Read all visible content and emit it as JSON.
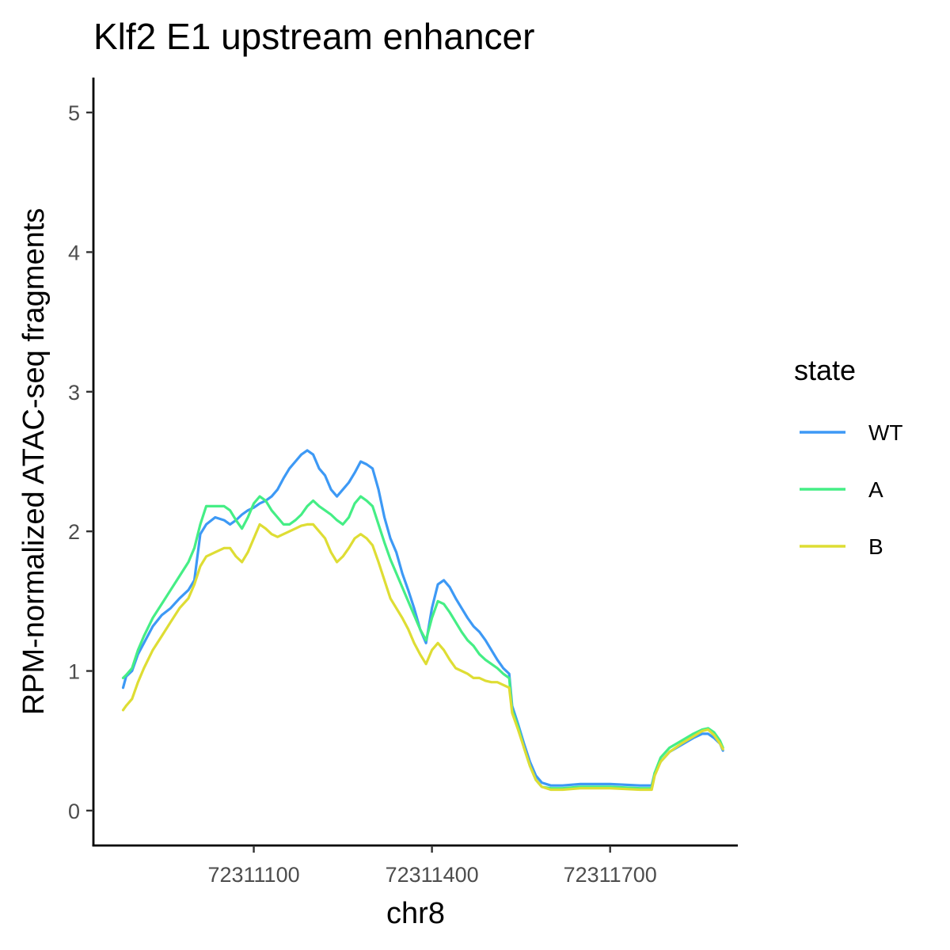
{
  "chart_data": {
    "type": "line",
    "title": "Klf2 E1 upstream enhancer",
    "xlabel": "chr8",
    "ylabel": "RPM-normalized ATAC-seq fragments",
    "xlim": [
      72310830,
      72311915
    ],
    "ylim": [
      -0.25,
      5.25
    ],
    "x_ticks": [
      72311100,
      72311400,
      72311700
    ],
    "x_tick_labels": [
      "72311100",
      "72311400",
      "72311700"
    ],
    "y_ticks": [
      0,
      1,
      2,
      3,
      4,
      5
    ],
    "y_tick_labels": [
      "0",
      "1",
      "2",
      "3",
      "4",
      "5"
    ],
    "grid": false,
    "legend": {
      "title": "state",
      "position": "right"
    },
    "series": [
      {
        "name": "WT",
        "color": "#3d99f5",
        "points": [
          [
            72310880,
            0.88
          ],
          [
            72310885,
            0.96
          ],
          [
            72310895,
            1.0
          ],
          [
            72310905,
            1.12
          ],
          [
            72310915,
            1.2
          ],
          [
            72310930,
            1.32
          ],
          [
            72310945,
            1.4
          ],
          [
            72310960,
            1.45
          ],
          [
            72310975,
            1.52
          ],
          [
            72310990,
            1.58
          ],
          [
            72311000,
            1.65
          ],
          [
            72311010,
            1.98
          ],
          [
            72311020,
            2.05
          ],
          [
            72311035,
            2.1
          ],
          [
            72311050,
            2.08
          ],
          [
            72311060,
            2.05
          ],
          [
            72311070,
            2.08
          ],
          [
            72311080,
            2.12
          ],
          [
            72311090,
            2.15
          ],
          [
            72311100,
            2.17
          ],
          [
            72311110,
            2.2
          ],
          [
            72311120,
            2.22
          ],
          [
            72311130,
            2.25
          ],
          [
            72311140,
            2.3
          ],
          [
            72311150,
            2.38
          ],
          [
            72311160,
            2.45
          ],
          [
            72311170,
            2.5
          ],
          [
            72311180,
            2.55
          ],
          [
            72311190,
            2.58
          ],
          [
            72311200,
            2.55
          ],
          [
            72311210,
            2.45
          ],
          [
            72311220,
            2.4
          ],
          [
            72311230,
            2.3
          ],
          [
            72311240,
            2.25
          ],
          [
            72311250,
            2.3
          ],
          [
            72311260,
            2.35
          ],
          [
            72311270,
            2.42
          ],
          [
            72311280,
            2.5
          ],
          [
            72311290,
            2.48
          ],
          [
            72311300,
            2.45
          ],
          [
            72311310,
            2.3
          ],
          [
            72311320,
            2.1
          ],
          [
            72311330,
            1.95
          ],
          [
            72311340,
            1.85
          ],
          [
            72311350,
            1.7
          ],
          [
            72311360,
            1.58
          ],
          [
            72311370,
            1.45
          ],
          [
            72311380,
            1.3
          ],
          [
            72311390,
            1.2
          ],
          [
            72311400,
            1.45
          ],
          [
            72311410,
            1.62
          ],
          [
            72311420,
            1.65
          ],
          [
            72311430,
            1.6
          ],
          [
            72311440,
            1.52
          ],
          [
            72311450,
            1.45
          ],
          [
            72311460,
            1.38
          ],
          [
            72311470,
            1.32
          ],
          [
            72311480,
            1.28
          ],
          [
            72311490,
            1.22
          ],
          [
            72311500,
            1.15
          ],
          [
            72311510,
            1.08
          ],
          [
            72311520,
            1.02
          ],
          [
            72311530,
            0.98
          ],
          [
            72311535,
            0.75
          ],
          [
            72311545,
            0.62
          ],
          [
            72311555,
            0.48
          ],
          [
            72311565,
            0.35
          ],
          [
            72311575,
            0.25
          ],
          [
            72311585,
            0.2
          ],
          [
            72311600,
            0.18
          ],
          [
            72311620,
            0.18
          ],
          [
            72311650,
            0.19
          ],
          [
            72311700,
            0.19
          ],
          [
            72311750,
            0.18
          ],
          [
            72311770,
            0.18
          ],
          [
            72311775,
            0.27
          ],
          [
            72311785,
            0.35
          ],
          [
            72311800,
            0.42
          ],
          [
            72311820,
            0.47
          ],
          [
            72311840,
            0.52
          ],
          [
            72311855,
            0.55
          ],
          [
            72311865,
            0.55
          ],
          [
            72311875,
            0.52
          ],
          [
            72311885,
            0.48
          ],
          [
            72311890,
            0.43
          ]
        ]
      },
      {
        "name": "A",
        "color": "#45ee85",
        "points": [
          [
            72310880,
            0.95
          ],
          [
            72310885,
            0.97
          ],
          [
            72310895,
            1.02
          ],
          [
            72310905,
            1.15
          ],
          [
            72310915,
            1.25
          ],
          [
            72310930,
            1.38
          ],
          [
            72310945,
            1.48
          ],
          [
            72310960,
            1.58
          ],
          [
            72310975,
            1.68
          ],
          [
            72310990,
            1.78
          ],
          [
            72311000,
            1.88
          ],
          [
            72311010,
            2.05
          ],
          [
            72311020,
            2.18
          ],
          [
            72311035,
            2.18
          ],
          [
            72311050,
            2.18
          ],
          [
            72311060,
            2.15
          ],
          [
            72311070,
            2.08
          ],
          [
            72311080,
            2.02
          ],
          [
            72311090,
            2.1
          ],
          [
            72311100,
            2.2
          ],
          [
            72311110,
            2.25
          ],
          [
            72311120,
            2.22
          ],
          [
            72311130,
            2.15
          ],
          [
            72311140,
            2.1
          ],
          [
            72311150,
            2.05
          ],
          [
            72311160,
            2.05
          ],
          [
            72311170,
            2.08
          ],
          [
            72311180,
            2.12
          ],
          [
            72311190,
            2.18
          ],
          [
            72311200,
            2.22
          ],
          [
            72311210,
            2.18
          ],
          [
            72311220,
            2.15
          ],
          [
            72311230,
            2.12
          ],
          [
            72311240,
            2.08
          ],
          [
            72311250,
            2.05
          ],
          [
            72311260,
            2.1
          ],
          [
            72311270,
            2.2
          ],
          [
            72311280,
            2.25
          ],
          [
            72311290,
            2.22
          ],
          [
            72311300,
            2.18
          ],
          [
            72311310,
            2.05
          ],
          [
            72311320,
            1.92
          ],
          [
            72311330,
            1.8
          ],
          [
            72311340,
            1.7
          ],
          [
            72311350,
            1.6
          ],
          [
            72311360,
            1.5
          ],
          [
            72311370,
            1.4
          ],
          [
            72311380,
            1.3
          ],
          [
            72311390,
            1.22
          ],
          [
            72311400,
            1.38
          ],
          [
            72311410,
            1.5
          ],
          [
            72311420,
            1.48
          ],
          [
            72311430,
            1.42
          ],
          [
            72311440,
            1.35
          ],
          [
            72311450,
            1.28
          ],
          [
            72311460,
            1.22
          ],
          [
            72311470,
            1.18
          ],
          [
            72311480,
            1.12
          ],
          [
            72311490,
            1.08
          ],
          [
            72311500,
            1.05
          ],
          [
            72311510,
            1.02
          ],
          [
            72311520,
            0.98
          ],
          [
            72311530,
            0.95
          ],
          [
            72311535,
            0.72
          ],
          [
            72311545,
            0.6
          ],
          [
            72311555,
            0.45
          ],
          [
            72311565,
            0.32
          ],
          [
            72311575,
            0.22
          ],
          [
            72311585,
            0.17
          ],
          [
            72311600,
            0.16
          ],
          [
            72311620,
            0.16
          ],
          [
            72311650,
            0.17
          ],
          [
            72311700,
            0.17
          ],
          [
            72311750,
            0.16
          ],
          [
            72311770,
            0.16
          ],
          [
            72311775,
            0.27
          ],
          [
            72311785,
            0.38
          ],
          [
            72311800,
            0.45
          ],
          [
            72311820,
            0.5
          ],
          [
            72311840,
            0.55
          ],
          [
            72311855,
            0.58
          ],
          [
            72311865,
            0.59
          ],
          [
            72311875,
            0.56
          ],
          [
            72311885,
            0.5
          ],
          [
            72311890,
            0.45
          ]
        ]
      },
      {
        "name": "B",
        "color": "#dedd34",
        "points": [
          [
            72310880,
            0.72
          ],
          [
            72310885,
            0.75
          ],
          [
            72310895,
            0.8
          ],
          [
            72310905,
            0.92
          ],
          [
            72310915,
            1.02
          ],
          [
            72310930,
            1.15
          ],
          [
            72310945,
            1.25
          ],
          [
            72310960,
            1.35
          ],
          [
            72310975,
            1.45
          ],
          [
            72310990,
            1.52
          ],
          [
            72311000,
            1.62
          ],
          [
            72311010,
            1.75
          ],
          [
            72311020,
            1.82
          ],
          [
            72311035,
            1.85
          ],
          [
            72311050,
            1.88
          ],
          [
            72311060,
            1.88
          ],
          [
            72311070,
            1.82
          ],
          [
            72311080,
            1.78
          ],
          [
            72311090,
            1.85
          ],
          [
            72311100,
            1.95
          ],
          [
            72311110,
            2.05
          ],
          [
            72311120,
            2.02
          ],
          [
            72311130,
            1.98
          ],
          [
            72311140,
            1.96
          ],
          [
            72311150,
            1.98
          ],
          [
            72311160,
            2.0
          ],
          [
            72311170,
            2.02
          ],
          [
            72311180,
            2.04
          ],
          [
            72311190,
            2.05
          ],
          [
            72311200,
            2.05
          ],
          [
            72311210,
            2.0
          ],
          [
            72311220,
            1.95
          ],
          [
            72311230,
            1.85
          ],
          [
            72311240,
            1.78
          ],
          [
            72311250,
            1.82
          ],
          [
            72311260,
            1.88
          ],
          [
            72311270,
            1.95
          ],
          [
            72311280,
            1.98
          ],
          [
            72311290,
            1.95
          ],
          [
            72311300,
            1.9
          ],
          [
            72311310,
            1.78
          ],
          [
            72311320,
            1.65
          ],
          [
            72311330,
            1.52
          ],
          [
            72311340,
            1.45
          ],
          [
            72311350,
            1.38
          ],
          [
            72311360,
            1.3
          ],
          [
            72311370,
            1.2
          ],
          [
            72311380,
            1.12
          ],
          [
            72311390,
            1.05
          ],
          [
            72311400,
            1.15
          ],
          [
            72311410,
            1.2
          ],
          [
            72311420,
            1.15
          ],
          [
            72311430,
            1.08
          ],
          [
            72311440,
            1.02
          ],
          [
            72311450,
            1.0
          ],
          [
            72311460,
            0.98
          ],
          [
            72311470,
            0.95
          ],
          [
            72311480,
            0.95
          ],
          [
            72311490,
            0.93
          ],
          [
            72311500,
            0.92
          ],
          [
            72311510,
            0.92
          ],
          [
            72311520,
            0.9
          ],
          [
            72311530,
            0.88
          ],
          [
            72311535,
            0.7
          ],
          [
            72311545,
            0.58
          ],
          [
            72311555,
            0.45
          ],
          [
            72311565,
            0.32
          ],
          [
            72311575,
            0.22
          ],
          [
            72311585,
            0.17
          ],
          [
            72311600,
            0.15
          ],
          [
            72311620,
            0.15
          ],
          [
            72311650,
            0.16
          ],
          [
            72311700,
            0.16
          ],
          [
            72311750,
            0.15
          ],
          [
            72311770,
            0.15
          ],
          [
            72311775,
            0.25
          ],
          [
            72311785,
            0.35
          ],
          [
            72311800,
            0.42
          ],
          [
            72311820,
            0.48
          ],
          [
            72311840,
            0.53
          ],
          [
            72311855,
            0.57
          ],
          [
            72311865,
            0.58
          ],
          [
            72311875,
            0.54
          ],
          [
            72311885,
            0.48
          ],
          [
            72311890,
            0.44
          ]
        ]
      }
    ]
  }
}
